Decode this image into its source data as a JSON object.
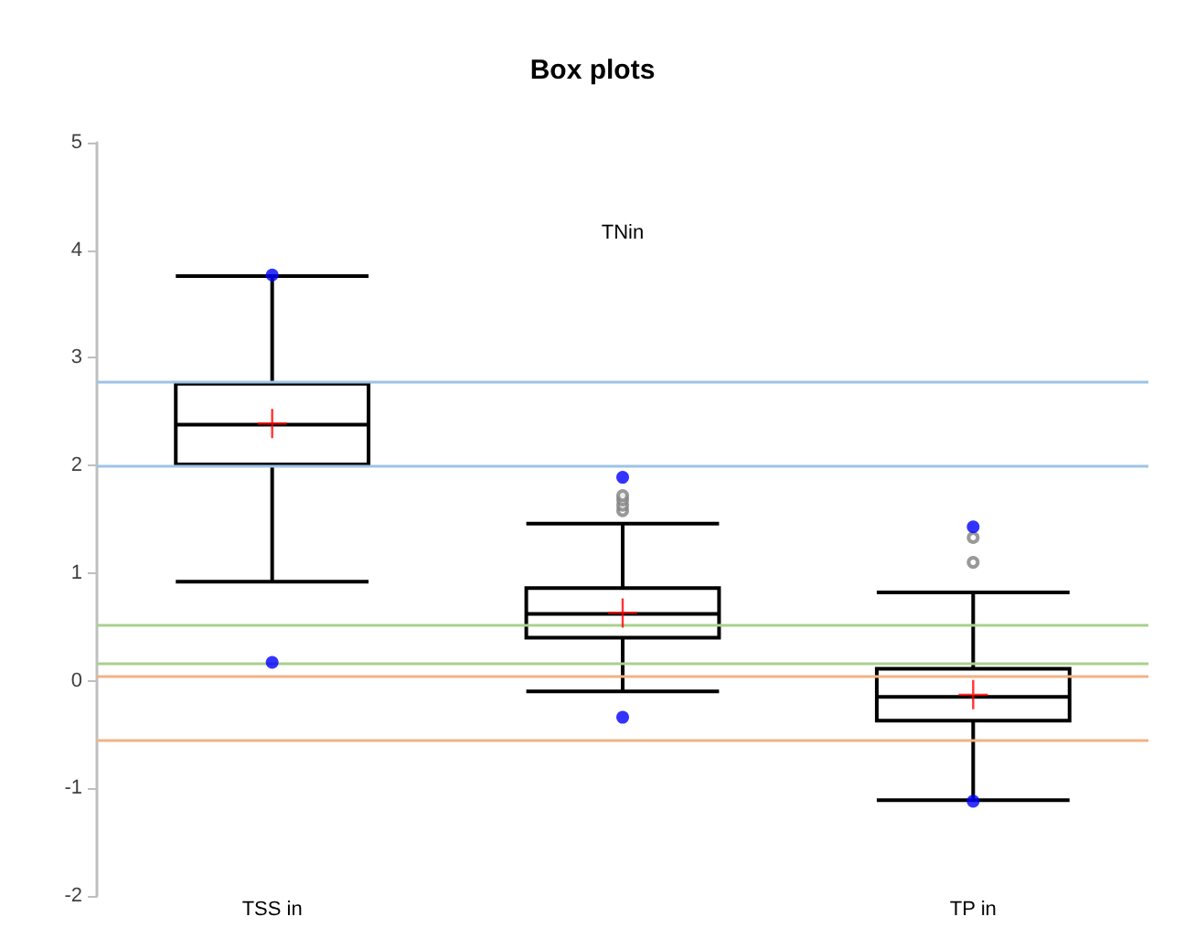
{
  "chart_data": {
    "type": "box",
    "title": "Box plots",
    "categories": [
      "TSS in",
      "TNin",
      "TP in"
    ],
    "series": [
      {
        "color": "#000000",
        "boxes": [
          {
            "low": 0.92,
            "q1": 2.01,
            "median": 2.38,
            "q3": 2.76,
            "high": 3.76,
            "mean": 2.39
          },
          {
            "low": -0.1,
            "q1": 0.4,
            "median": 0.62,
            "q3": 0.86,
            "high": 1.46,
            "mean": 0.63,
            "outliers": [
              1.58,
              1.63,
              1.68,
              1.72
            ]
          },
          {
            "low": -1.11,
            "q1": -0.37,
            "median": -0.15,
            "q3": 0.11,
            "high": 0.82,
            "mean": -0.13,
            "outliers": [
              1.1,
              1.33
            ]
          }
        ]
      },
      {
        "type": "scatter",
        "color": "#0000ff",
        "x": [
          "TSS in",
          "TSS in",
          "TNin",
          "TNin",
          "TP in",
          "TP in"
        ],
        "values": [
          3.77,
          0.17,
          1.89,
          -0.34,
          1.43,
          -1.12
        ]
      }
    ],
    "ylim": [
      -2,
      5
    ],
    "yticks": [
      -2,
      -1,
      0,
      1,
      2,
      3,
      4,
      5
    ],
    "grid": false,
    "ref_lines": [
      {
        "axis": "y",
        "value": 2.78,
        "color": "#9dc3e6"
      },
      {
        "axis": "y",
        "value": 1.99,
        "color": "#9dc3e6"
      },
      {
        "axis": "y",
        "value": 0.52,
        "color": "#a9d18e"
      },
      {
        "axis": "y",
        "value": 0.17,
        "color": "#a9d18e"
      },
      {
        "axis": "y",
        "value": 0.05,
        "color": "#f4b183"
      },
      {
        "axis": "y",
        "value": -0.55,
        "color": "#f4b183"
      }
    ]
  }
}
